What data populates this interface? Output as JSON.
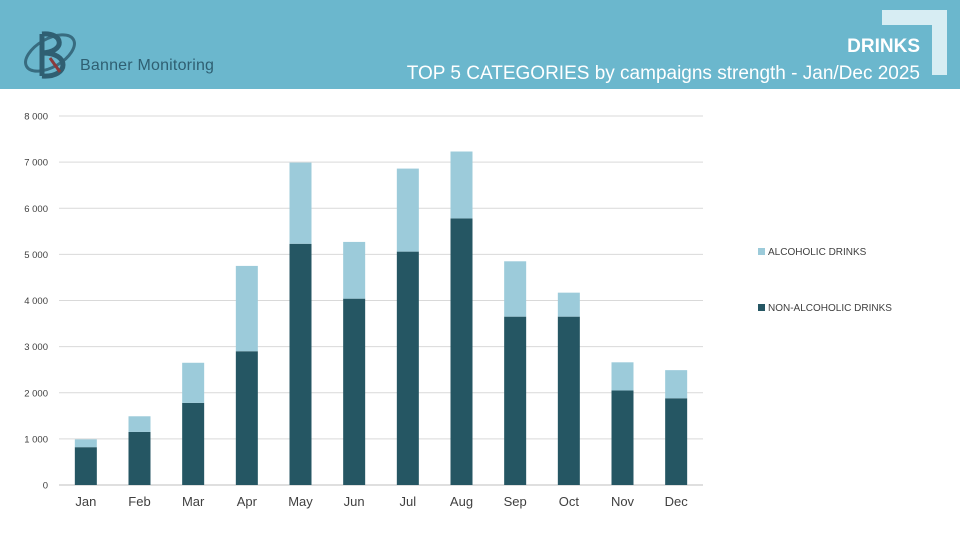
{
  "header": {
    "logo_text": "Banner Monitoring",
    "title": "DRINKS",
    "subtitle": "TOP 5 CATEGORIES by campaigns strength - Jan/Dec 2025",
    "background_color": "#6bb7cd"
  },
  "chart_data": {
    "type": "bar",
    "stacked": true,
    "categories": [
      "Jan",
      "Feb",
      "Mar",
      "Apr",
      "May",
      "Jun",
      "Jul",
      "Aug",
      "Sep",
      "Oct",
      "Nov",
      "Dec"
    ],
    "series": [
      {
        "name": "NON-ALCOHOLIC DRINKS",
        "color": "#255663",
        "values": [
          820,
          1150,
          1780,
          2900,
          5230,
          4040,
          5060,
          5780,
          3650,
          3650,
          2050,
          1880
        ]
      },
      {
        "name": "ALCOHOLIC DRINKS",
        "color": "#9ccbda",
        "values": [
          170,
          340,
          870,
          1850,
          1760,
          1230,
          1800,
          1450,
          1200,
          520,
          610,
          610
        ]
      }
    ],
    "y_ticks": [
      "0",
      "1 000",
      "2 000",
      "3 000",
      "4 000",
      "5 000",
      "6 000",
      "7 000",
      "8 000"
    ],
    "ylim": [
      0,
      8000
    ],
    "grid": true,
    "legend_position": "right",
    "legend_order": [
      "ALCOHOLIC DRINKS",
      "NON-ALCOHOLIC DRINKS"
    ]
  }
}
